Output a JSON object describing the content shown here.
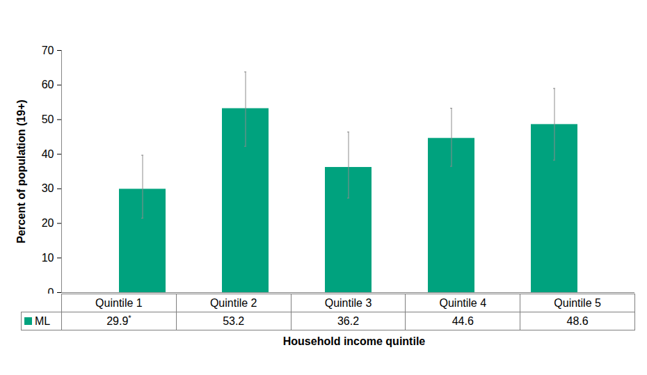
{
  "chart_data": {
    "type": "bar",
    "categories": [
      "Quintile 1",
      "Quintile 2",
      "Quintile 3",
      "Quintile 4",
      "Quintile 5"
    ],
    "series": [
      {
        "name": "ML",
        "color": "#00a27e",
        "values": [
          29.9,
          53.2,
          36.2,
          44.6,
          48.6
        ],
        "value_labels": [
          "29.9*",
          "53.2",
          "36.2",
          "44.6",
          "48.6"
        ],
        "error_low": [
          21.5,
          42.3,
          27.3,
          36.5,
          38.3
        ],
        "error_high": [
          39.7,
          63.8,
          46.4,
          53.3,
          59.0
        ]
      }
    ],
    "xlabel": "Household income quintile",
    "ylabel": "Percent of population (19+)",
    "ylim": [
      0,
      70
    ],
    "yticks": [
      0,
      10,
      20,
      30,
      40,
      50,
      60,
      70
    ],
    "grid": false,
    "legend": "bottom"
  }
}
